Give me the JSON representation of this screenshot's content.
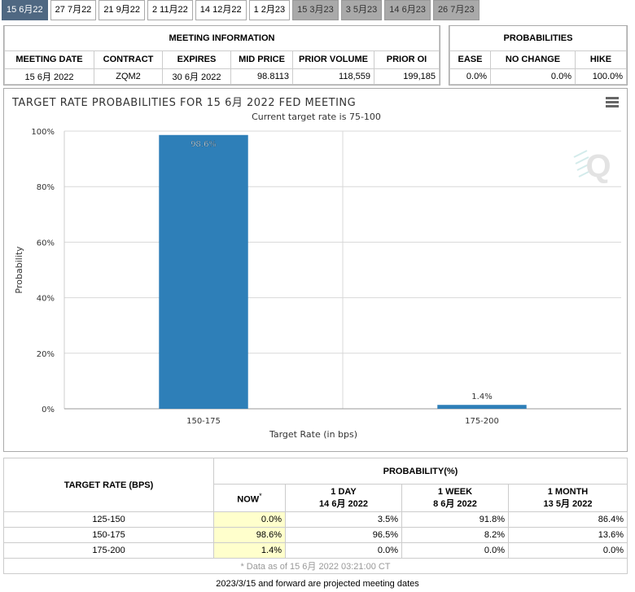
{
  "tabs": [
    {
      "label": "15 6月22",
      "state": "active"
    },
    {
      "label": "27 7月22",
      "state": "normal"
    },
    {
      "label": "21 9月22",
      "state": "normal"
    },
    {
      "label": "2 11月22",
      "state": "normal"
    },
    {
      "label": "14 12月22",
      "state": "normal"
    },
    {
      "label": "1 2月23",
      "state": "normal"
    },
    {
      "label": "15 3月23",
      "state": "gray"
    },
    {
      "label": "3 5月23",
      "state": "gray"
    },
    {
      "label": "14 6月23",
      "state": "gray"
    },
    {
      "label": "26 7月23",
      "state": "gray"
    }
  ],
  "meeting_info": {
    "title": "MEETING INFORMATION",
    "headers": [
      "MEETING DATE",
      "CONTRACT",
      "EXPIRES",
      "MID PRICE",
      "PRIOR VOLUME",
      "PRIOR OI"
    ],
    "values": [
      "15 6月 2022",
      "ZQM2",
      "30 6月 2022",
      "98.8113",
      "118,559",
      "199,185"
    ]
  },
  "probabilities": {
    "title": "PROBABILITIES",
    "headers": [
      "EASE",
      "NO CHANGE",
      "HIKE"
    ],
    "values": [
      "0.0%",
      "0.0%",
      "100.0%"
    ]
  },
  "chart": {
    "title": "TARGET RATE PROBABILITIES FOR 15 6月 2022 FED MEETING",
    "subtitle": "Current target rate is 75-100",
    "watermark": "Q"
  },
  "chart_data": {
    "type": "bar",
    "title": "TARGET RATE PROBABILITIES FOR 15 6月 2022 FED MEETING",
    "subtitle": "Current target rate is 75-100",
    "xlabel": "Target Rate (in bps)",
    "ylabel": "Probability",
    "categories": [
      "150-175",
      "175-200"
    ],
    "values": [
      98.6,
      1.4
    ],
    "data_labels": [
      "98.6%",
      "1.4%"
    ],
    "ylim": [
      0,
      100
    ],
    "yticks": [
      "0%",
      "20%",
      "40%",
      "60%",
      "80%",
      "100%"
    ],
    "bar_color": "#2e7fb8",
    "grid": true
  },
  "prob_table": {
    "rate_header": "TARGET RATE (BPS)",
    "prob_header": "PROBABILITY(%)",
    "now_label": "NOW",
    "now_marker": "*",
    "cols": [
      {
        "line1": "1 DAY",
        "line2": "14 6月 2022"
      },
      {
        "line1": "1 WEEK",
        "line2": "8 6月 2022"
      },
      {
        "line1": "1 MONTH",
        "line2": "13 5月 2022"
      }
    ],
    "rows": [
      {
        "rate": "125-150",
        "now": "0.0%",
        "day": "3.5%",
        "week": "91.8%",
        "month": "86.4%"
      },
      {
        "rate": "150-175",
        "now": "98.6%",
        "day": "96.5%",
        "week": "8.2%",
        "month": "13.6%"
      },
      {
        "rate": "175-200",
        "now": "1.4%",
        "day": "0.0%",
        "week": "0.0%",
        "month": "0.0%"
      }
    ],
    "footnote": "* Data as of 15 6月 2022 03:21:00 CT"
  },
  "footer": "2023/3/15 and forward are projected meeting dates"
}
